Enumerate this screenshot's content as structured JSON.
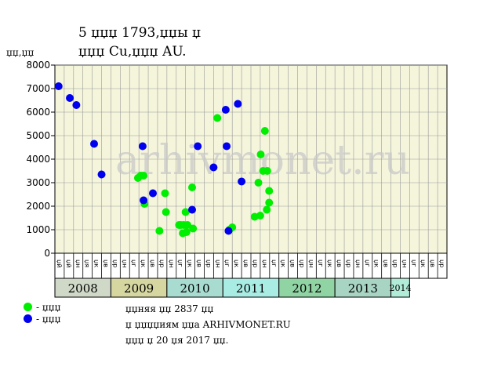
{
  "title_line1": "5  џџџ 1793,џџы џ",
  "title_line2": "џџџ Cu,џџџ AU.",
  "ylabel": "џџ,џџ",
  "watermark": "arhivmonet.ru",
  "legend": [
    {
      "label": "- џџџ",
      "color": "#00ee00"
    },
    {
      "label": "- џџџ",
      "color": "#0000ee"
    }
  ],
  "notes": [
    "џџняя џџ 2837 џџ",
    "џ џџџџиям џџа ARHIVMONET.RU",
    "џџџ џ 20 џя 2017 џџ."
  ],
  "years": [
    {
      "label": "2008",
      "color": "#d0d8c8",
      "months": 6
    },
    {
      "label": "2009",
      "color": "#d6d6a0",
      "months": 6
    },
    {
      "label": "2010",
      "color": "#a8dcd0",
      "months": 6
    },
    {
      "label": "2011",
      "color": "#a8ece4",
      "months": 6
    },
    {
      "label": "2012",
      "color": "#90d4a4",
      "months": 6
    },
    {
      "label": "2013",
      "color": "#a8d4c4",
      "months": 6
    },
    {
      "label": "2014",
      "color": "#b0ecd8",
      "months": 2
    }
  ],
  "month_labels": [
    "џй",
    "џй",
    "џн",
    "џя",
    "џк",
    "џв",
    "џр",
    "џн",
    "џг",
    "џк",
    "џв",
    "џр",
    "џн",
    "џг",
    "џк",
    "џв",
    "џр",
    "џн",
    "џг",
    "џк",
    "џв",
    "џр",
    "џн",
    "џг",
    "џк",
    "џв",
    "џр",
    "џн",
    "џг",
    "џк",
    "џв",
    "џр",
    "џн",
    "џг",
    "џк",
    "џв",
    "џр",
    "џн",
    "џг",
    "џк",
    "џв",
    "џр"
  ],
  "chart_data": {
    "type": "scatter",
    "ylim": [
      0,
      8000
    ],
    "yticks": [
      0,
      1000,
      2000,
      3000,
      4000,
      5000,
      6000,
      7000,
      8000
    ],
    "grid": true,
    "series": [
      {
        "color": "#00ee00",
        "points": [
          [
            8.9,
            3200
          ],
          [
            9.2,
            3300
          ],
          [
            9.5,
            3300
          ],
          [
            9.6,
            2100
          ],
          [
            11.2,
            950
          ],
          [
            11.8,
            2550
          ],
          [
            11.9,
            1750
          ],
          [
            13.3,
            1200
          ],
          [
            13.5,
            1200
          ],
          [
            13.7,
            850
          ],
          [
            13.8,
            1200
          ],
          [
            14.0,
            1750
          ],
          [
            14.1,
            900
          ],
          [
            14.2,
            1200
          ],
          [
            14.7,
            2800
          ],
          [
            14.8,
            1050
          ],
          [
            17.4,
            5750
          ],
          [
            18.7,
            1000
          ],
          [
            19.0,
            1100
          ],
          [
            21.4,
            1550
          ],
          [
            21.8,
            3000
          ],
          [
            22.0,
            1600
          ],
          [
            22.05,
            4200
          ],
          [
            22.3,
            3500
          ],
          [
            22.5,
            5200
          ],
          [
            22.7,
            1850
          ],
          [
            22.75,
            3500
          ],
          [
            22.95,
            2650
          ],
          [
            22.95,
            2150
          ]
        ]
      },
      {
        "color": "#0000ee",
        "points": [
          [
            0.4,
            7100
          ],
          [
            1.6,
            6600
          ],
          [
            2.3,
            6300
          ],
          [
            4.2,
            4650
          ],
          [
            5.0,
            3350
          ],
          [
            9.4,
            4550
          ],
          [
            9.5,
            2250
          ],
          [
            10.5,
            2550
          ],
          [
            14.7,
            1850
          ],
          [
            15.3,
            4550
          ],
          [
            17.0,
            3650
          ],
          [
            18.3,
            6100
          ],
          [
            18.4,
            4550
          ],
          [
            18.6,
            950
          ],
          [
            19.6,
            6350
          ],
          [
            20.0,
            3050
          ]
        ]
      }
    ]
  }
}
